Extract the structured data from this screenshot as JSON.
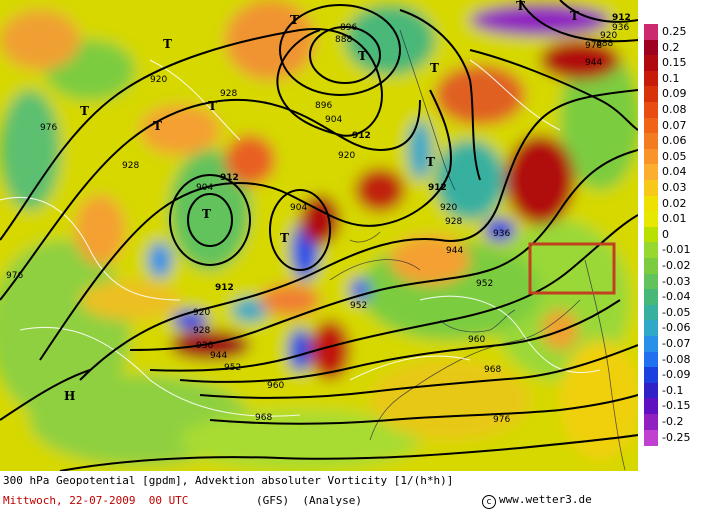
{
  "caption": {
    "line1": "300 hPa Geopotential [gpdm], Advektion absoluter Vorticity [1/(h*h)]",
    "date": "Mittwoch, 22-07-2009  00 UTC",
    "model": "(GFS)  (Analyse)",
    "copyright_symbol": "c",
    "source": "www.wetter3.de"
  },
  "colorscale": {
    "labels": [
      "0.25",
      "0.2",
      "0.15",
      "0.1",
      "0.09",
      "0.08",
      "0.07",
      "0.06",
      "0.05",
      "0.04",
      "0.03",
      "0.02",
      "0.01",
      "0",
      "-0.01",
      "-0.02",
      "-0.03",
      "-0.04",
      "-0.05",
      "-0.06",
      "-0.07",
      "-0.08",
      "-0.09",
      "-0.1",
      "-0.15",
      "-0.2",
      "-0.25"
    ],
    "colors": [
      "#cc2a6e",
      "#9e0020",
      "#b00a10",
      "#c81a0a",
      "#d8320a",
      "#e84c10",
      "#f06418",
      "#f47c20",
      "#f89428",
      "#fcae30",
      "#f8c818",
      "#f0e000",
      "#e6e800",
      "#b8e000",
      "#96d830",
      "#7ccc40",
      "#62c25c",
      "#48b878",
      "#38b0a0",
      "#30a8c8",
      "#2890e8",
      "#2070f0",
      "#1c40e0",
      "#3020c8",
      "#6010c0",
      "#9020c0",
      "#c040d0"
    ]
  },
  "contours": {
    "labels": [
      "912",
      "912",
      "912",
      "912",
      "912",
      "904",
      "904",
      "904",
      "896",
      "896",
      "888",
      "888",
      "920",
      "920",
      "920",
      "920",
      "920",
      "928",
      "928",
      "928",
      "928",
      "936",
      "936",
      "936",
      "944",
      "944",
      "944",
      "952",
      "952",
      "952",
      "960",
      "960",
      "968",
      "968",
      "976",
      "976",
      "976",
      "978"
    ]
  },
  "pressure_centers": {
    "lows": [
      "T",
      "T",
      "T",
      "T",
      "T",
      "T",
      "T",
      "T",
      "T",
      "T",
      "T",
      "T"
    ],
    "highs": [
      "H"
    ]
  },
  "annotation_box": {
    "color": "#c04020"
  }
}
